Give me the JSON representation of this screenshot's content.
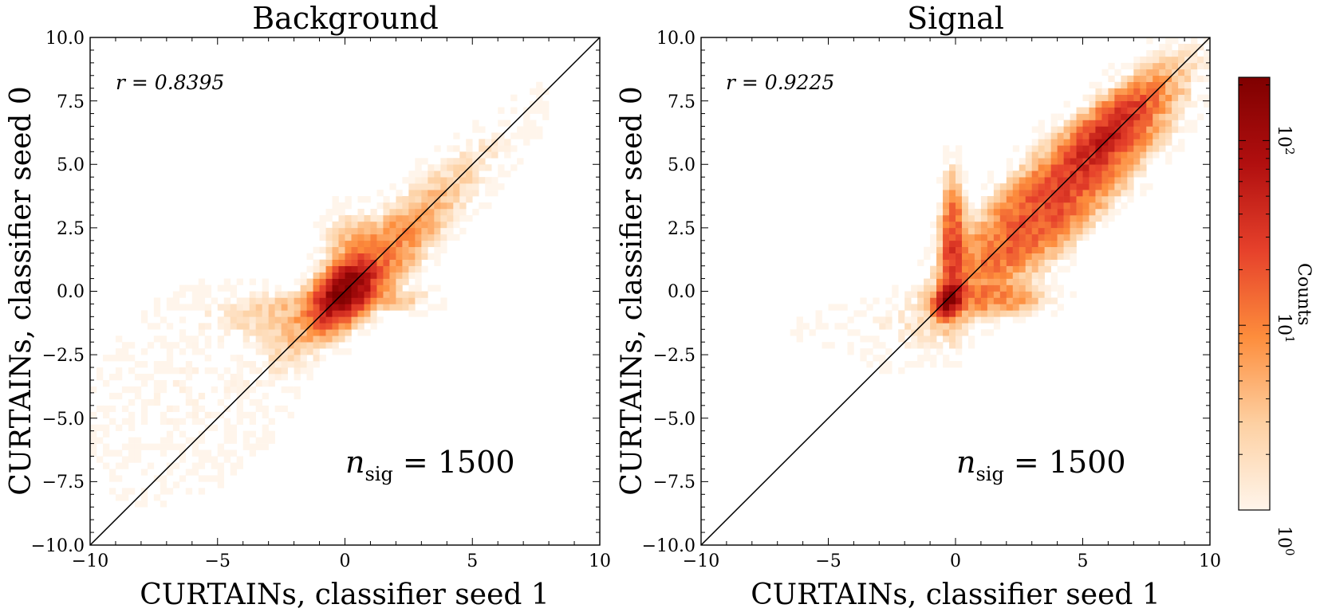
{
  "chart_data": [
    {
      "type": "heatmap",
      "title": "Background",
      "xlabel": "CURTAINs, classifier seed 1",
      "ylabel": "CURTAINs, classifier seed 0",
      "xlim": [
        -10,
        10
      ],
      "ylim": [
        -10,
        10
      ],
      "x_ticks": [
        -10,
        -5,
        0,
        5,
        10
      ],
      "x_tick_labels": [
        "−10",
        "−5",
        "0",
        "5",
        "10"
      ],
      "y_ticks": [
        -10,
        -7.5,
        -5,
        -2.5,
        0,
        2.5,
        5,
        7.5,
        10
      ],
      "y_tick_labels": [
        "−10.0",
        "−7.5",
        "−5.0",
        "−2.5",
        "0.0",
        "2.5",
        "5.0",
        "7.5",
        "10.0"
      ],
      "diagonal_line": [
        [
          -10,
          -10
        ],
        [
          10,
          10
        ]
      ],
      "correlation_text": "r = 0.8395",
      "nsig_text": "n",
      "nsig_sub": "sig",
      "nsig_value": " = 1500",
      "bins": 80,
      "density_components": [
        {
          "cx": 0.0,
          "cy": 0.0,
          "sx": 0.55,
          "sy": 0.55,
          "rho": 0.5,
          "peak": 200
        },
        {
          "cx": 0.6,
          "cy": 0.5,
          "sx": 1.6,
          "sy": 1.6,
          "rho": 0.85,
          "peak": 12
        },
        {
          "cx": 3.2,
          "cy": 3.2,
          "sx": 2.2,
          "sy": 2.2,
          "rho": 0.9,
          "peak": 2.5
        },
        {
          "cx": -2.2,
          "cy": -0.8,
          "sx": 1.8,
          "sy": 0.55,
          "rho": 0.2,
          "peak": 3
        },
        {
          "cx": 0.3,
          "cy": 1.6,
          "sx": 0.7,
          "sy": 0.9,
          "rho": 0.0,
          "peak": 4
        },
        {
          "cx": 2.0,
          "cy": -0.3,
          "sx": 0.9,
          "sy": 0.3,
          "rho": 0.0,
          "peak": 3
        },
        {
          "cx": -6.0,
          "cy": -4.0,
          "sx": 2.5,
          "sy": 2.5,
          "rho": 0.3,
          "peak": 0.9
        }
      ]
    },
    {
      "type": "heatmap",
      "title": "Signal",
      "xlabel": "CURTAINs, classifier seed 1",
      "ylabel": "CURTAINs, classifier seed 0",
      "xlim": [
        -10,
        10
      ],
      "ylim": [
        -10,
        10
      ],
      "x_ticks": [
        -10,
        -5,
        0,
        5,
        10
      ],
      "x_tick_labels": [
        "−10",
        "−5",
        "0",
        "5",
        "10"
      ],
      "y_ticks": [
        -10,
        -7.5,
        -5,
        -2.5,
        0,
        2.5,
        5,
        7.5,
        10
      ],
      "y_tick_labels": [
        "−10.0",
        "−7.5",
        "−5.0",
        "−2.5",
        "0.0",
        "2.5",
        "5.0",
        "7.5",
        "10.0"
      ],
      "diagonal_line": [
        [
          -10,
          -10
        ],
        [
          10,
          10
        ]
      ],
      "correlation_text": "r = 0.9225",
      "nsig_text": "n",
      "nsig_sub": "sig",
      "nsig_value": " = 1500",
      "bins": 80,
      "density_components": [
        {
          "cx": -0.25,
          "cy": -0.3,
          "sx": 0.25,
          "sy": 0.3,
          "rho": 0.3,
          "peak": 220
        },
        {
          "cx": 4.0,
          "cy": 3.8,
          "sx": 2.3,
          "sy": 2.3,
          "rho": 0.88,
          "peak": 25
        },
        {
          "cx": 6.0,
          "cy": 6.2,
          "sx": 1.0,
          "sy": 1.0,
          "rho": 0.8,
          "peak": 40
        },
        {
          "cx": -0.1,
          "cy": 1.5,
          "sx": 0.25,
          "sy": 1.4,
          "rho": 0.0,
          "peak": 30
        },
        {
          "cx": 1.5,
          "cy": -0.3,
          "sx": 1.2,
          "sy": 0.35,
          "rho": 0.0,
          "peak": 8
        },
        {
          "cx": -3.0,
          "cy": -1.2,
          "sx": 2.0,
          "sy": 0.7,
          "rho": 0.3,
          "peak": 0.8
        }
      ]
    }
  ],
  "colorbar": {
    "label": "Counts",
    "scale": "log",
    "range": [
      1,
      220
    ],
    "ticks": [
      1,
      10,
      100
    ],
    "tick_base": "10",
    "tick_exponents": [
      "0",
      "1",
      "2"
    ],
    "colors": [
      "#fff5eb",
      "#fdd0a2",
      "#fd8d3c",
      "#e6412b",
      "#b10f0f",
      "#7f0000"
    ]
  }
}
